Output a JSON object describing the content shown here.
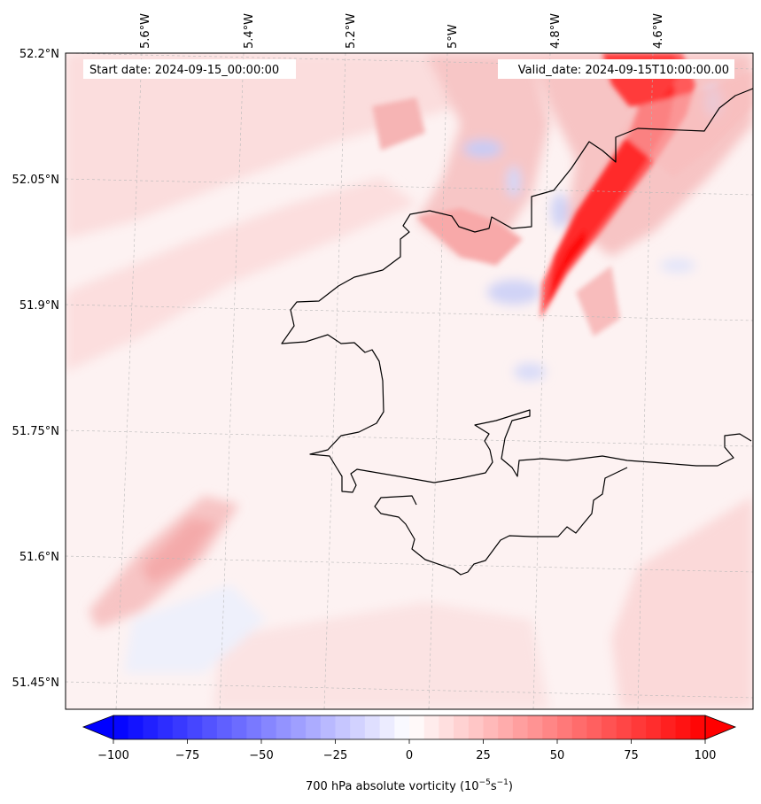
{
  "header": {
    "start_date": "Start date: 2024-09-15_00:00:00",
    "valid_date": "Valid_date: 2024-09-15T10:00:00.00"
  },
  "map": {
    "projection_note_lon_ticks": [
      "5.6°W",
      "5.4°W",
      "5.2°W",
      "5°W",
      "4.8°W",
      "4.6°W"
    ],
    "lat_ticks": [
      "52.2°N",
      "52.05°N",
      "51.9°N",
      "51.75°N",
      "51.6°N",
      "51.45°N"
    ],
    "variable": "700 hPa absolute vorticity",
    "coastline_color": "#000000",
    "gridline_style": "dashed-grey"
  },
  "colorbar": {
    "min": -100,
    "max": 100,
    "ticks": [
      "−100",
      "−75",
      "−50",
      "−25",
      "0",
      "25",
      "50",
      "75",
      "100"
    ],
    "label_prefix": "700 hPa absolute vorticity (10",
    "label_exp1": "−5",
    "label_mid": "s",
    "label_exp2": "−1",
    "label_suffix": ")",
    "colormap": "bwr",
    "low_color": "#0000ff",
    "mid_color": "#ffffff",
    "high_color": "#ff0000",
    "extend": "both"
  }
}
